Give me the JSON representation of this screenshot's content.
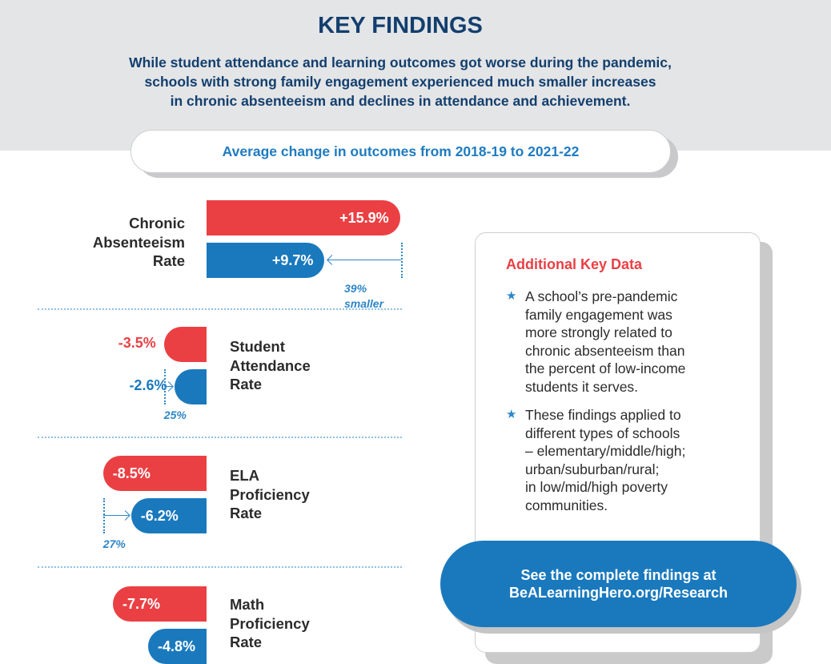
{
  "header": {
    "title": "KEY FINDINGS",
    "subtitle_lines": [
      "While student attendance and learning outcomes got worse during the pandemic,",
      "schools with strong family engagement experienced much smaller increases",
      "in chronic absenteeism and declines in attendance and achievement."
    ]
  },
  "subheader": "Average change in outcomes from 2018-19 to 2021-22",
  "colors": {
    "red": "#ea4044",
    "blue": "#1a79bd",
    "navy": "#123f6e"
  },
  "chart_data": {
    "type": "bar",
    "orientation": "horizontal",
    "title": "Average change in outcomes from 2018-19 to 2021-22",
    "categories": [
      {
        "label_lines": [
          "Chronic",
          "Absenteeism",
          "Rate"
        ]
      },
      {
        "label_lines": [
          "Student",
          "Attendance",
          "Rate"
        ]
      },
      {
        "label_lines": [
          "ELA",
          "Proficiency",
          "Rate"
        ]
      },
      {
        "label_lines": [
          "Math",
          "Proficiency",
          "Rate"
        ]
      }
    ],
    "series": [
      {
        "color": "#ea4044",
        "values": [
          15.9,
          -3.5,
          -8.5,
          -7.7
        ],
        "labels": [
          "+15.9%",
          "-3.5%",
          "-8.5%",
          "-7.7%"
        ]
      },
      {
        "color": "#1a79bd",
        "values": [
          9.7,
          -2.6,
          -6.2,
          -4.8
        ],
        "labels": [
          "+9.7%",
          "-2.6%",
          "-6.2%",
          "-4.8%"
        ]
      }
    ],
    "annotations": [
      {
        "category": 0,
        "lines": [
          "39%",
          "smaller"
        ]
      },
      {
        "category": 1,
        "lines": [
          "25%"
        ]
      },
      {
        "category": 2,
        "lines": [
          "27%"
        ]
      }
    ]
  },
  "card": {
    "title": "Additional Key Data",
    "bullets": [
      {
        "icon": "star-icon",
        "lines": [
          "A school’s pre-pandemic",
          "family engagement was",
          "more strongly related to",
          "chronic absenteeism than",
          "the percent of low-income",
          "students it serves."
        ]
      },
      {
        "icon": "star-icon",
        "lines": [
          "These findings applied to",
          "different types of schools",
          "– elementary/middle/high;",
          "urban/suburban/rural;",
          "in low/mid/high poverty",
          "communities."
        ]
      }
    ]
  },
  "cta": {
    "line1": "See the complete findings at",
    "line2": "BeALearningHero.org/Research"
  }
}
